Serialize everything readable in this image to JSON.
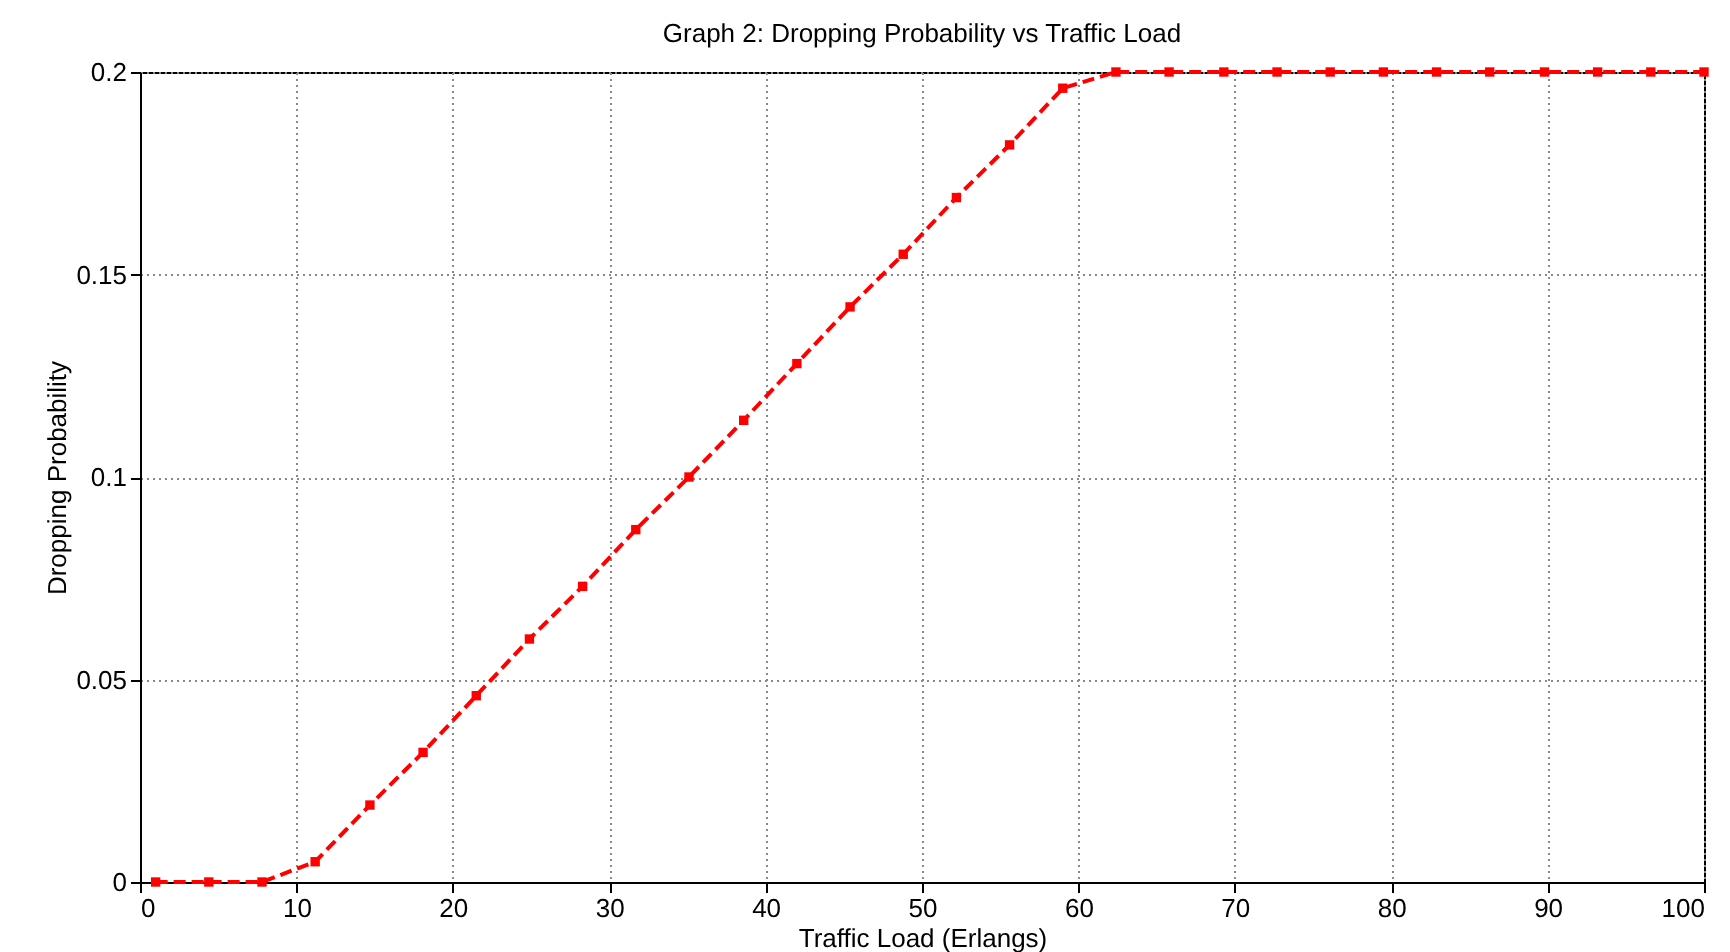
{
  "chart_data": {
    "type": "line",
    "title": "Graph 2: Dropping Probability vs Traffic Load",
    "xlabel": "Traffic Load (Erlangs)",
    "ylabel": "Dropping Probability",
    "x": [
      1,
      4.4,
      7.8,
      11.2,
      14.7,
      18.1,
      21.5,
      24.9,
      28.3,
      31.7,
      35.1,
      38.6,
      42,
      45.4,
      48.8,
      52.2,
      55.6,
      59,
      62.4,
      65.8,
      69.3,
      72.7,
      76.1,
      79.5,
      82.9,
      86.3,
      89.8,
      93.2,
      96.6,
      100
    ],
    "series": [
      {
        "color": "#ff0000",
        "values": [
          0,
          0,
          0,
          0.005,
          0.019,
          0.032,
          0.046,
          0.06,
          0.073,
          0.087,
          0.1,
          0.114,
          0.128,
          0.142,
          0.155,
          0.169,
          0.182,
          0.196,
          0.2,
          0.2,
          0.2,
          0.2,
          0.2,
          0.2,
          0.2,
          0.2,
          0.2,
          0.2,
          0.2,
          0.2
        ]
      }
    ],
    "xlim": [
      0,
      100
    ],
    "xticks": [
      0,
      10,
      20,
      30,
      40,
      50,
      60,
      70,
      80,
      90,
      100
    ],
    "ylim": [
      0,
      0.2
    ],
    "yticks": [
      0,
      0.05,
      0.1,
      0.15,
      0.2
    ],
    "grid": true,
    "marker": "square",
    "line_style": "dashed"
  }
}
